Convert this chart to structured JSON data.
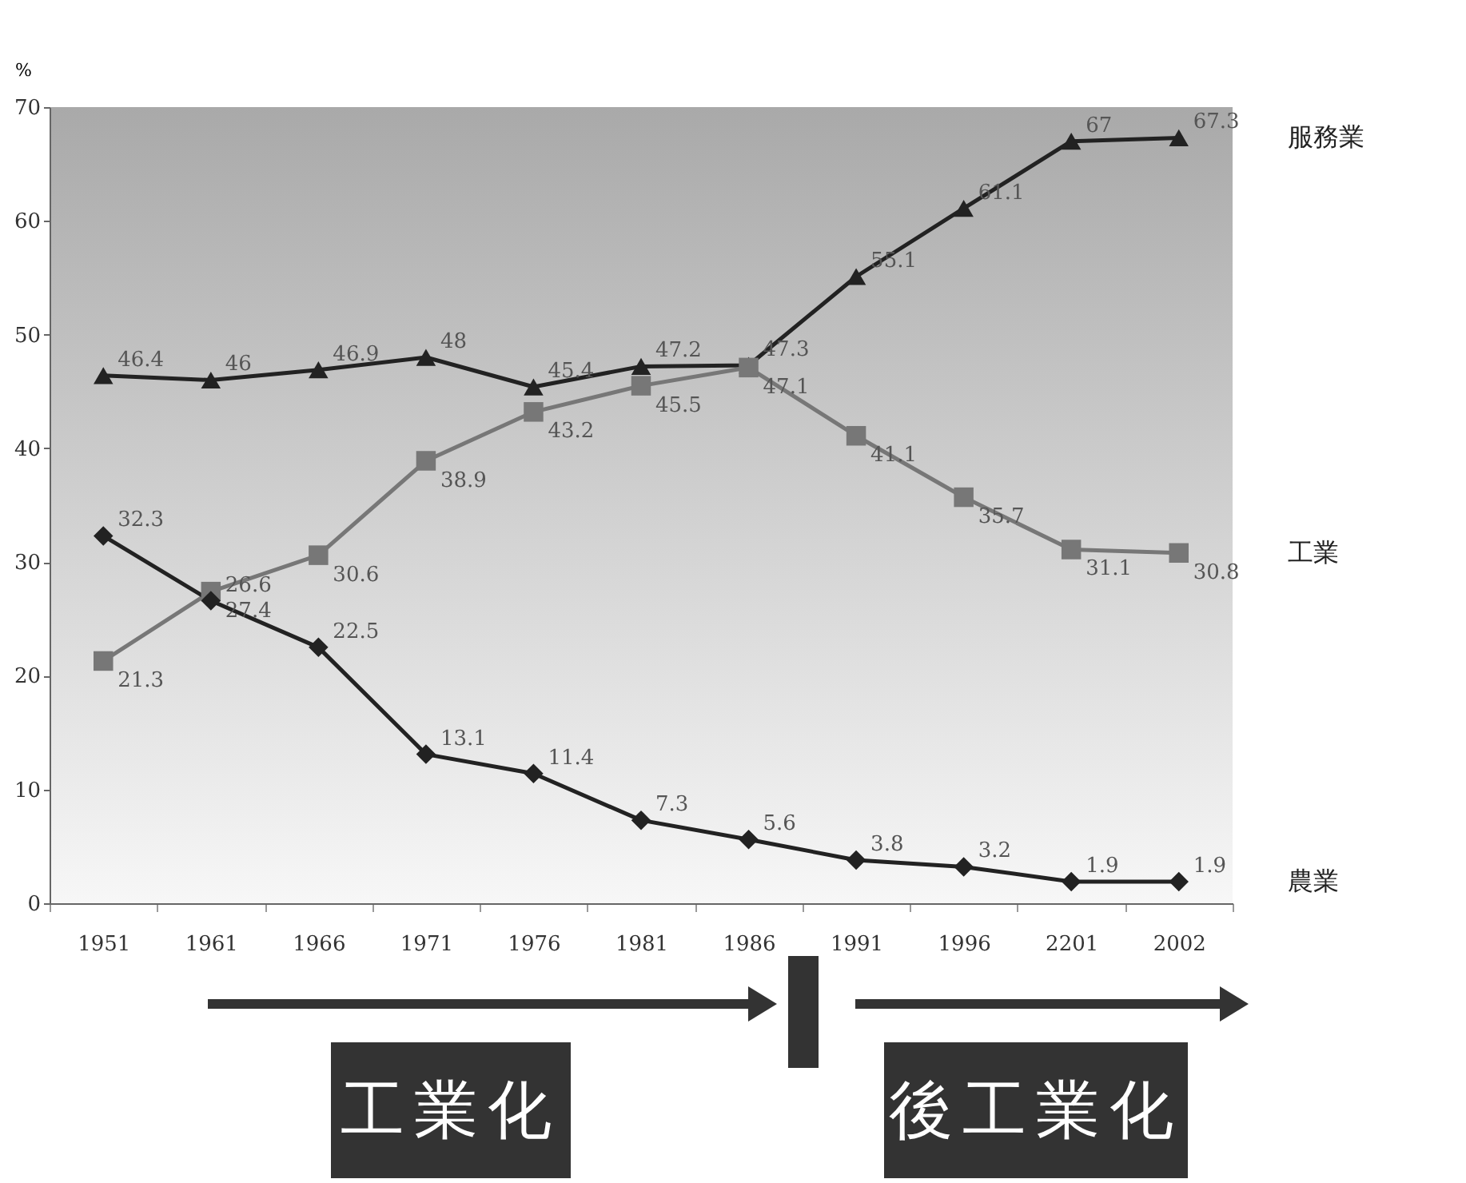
{
  "chart_data": {
    "type": "line",
    "ylabel": "%",
    "categories": [
      "1951",
      "1961",
      "1966",
      "1971",
      "1976",
      "1981",
      "1986",
      "1991",
      "1996",
      "2201",
      "2002"
    ],
    "series": [
      {
        "name": "服務業",
        "color": "#222222",
        "marker": "triangle",
        "values": [
          46.4,
          46,
          46.9,
          48,
          45.4,
          47.2,
          47.3,
          55.1,
          61.1,
          67,
          67.3
        ]
      },
      {
        "name": "工業",
        "color": "#777777",
        "marker": "square",
        "values": [
          21.3,
          27.4,
          30.6,
          38.9,
          43.2,
          45.5,
          47.1,
          41.1,
          35.7,
          31.1,
          30.8
        ]
      },
      {
        "name": "農業",
        "color": "#222222",
        "marker": "diamond",
        "values": [
          32.3,
          26.6,
          22.5,
          13.1,
          11.4,
          7.3,
          5.6,
          3.8,
          3.2,
          1.9,
          1.9
        ]
      }
    ],
    "ylim": [
      0,
      70
    ],
    "yticks": [
      0,
      10,
      20,
      30,
      40,
      50,
      60,
      70
    ],
    "data_labels": true,
    "grid": false,
    "line_style": "solid",
    "annotations": [
      "工業化",
      "後工業化"
    ]
  }
}
